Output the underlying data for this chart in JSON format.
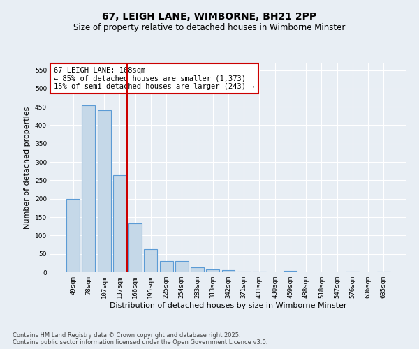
{
  "title": "67, LEIGH LANE, WIMBORNE, BH21 2PP",
  "subtitle": "Size of property relative to detached houses in Wimborne Minster",
  "xlabel": "Distribution of detached houses by size in Wimborne Minster",
  "ylabel": "Number of detached properties",
  "categories": [
    "49sqm",
    "78sqm",
    "107sqm",
    "137sqm",
    "166sqm",
    "195sqm",
    "225sqm",
    "254sqm",
    "283sqm",
    "313sqm",
    "342sqm",
    "371sqm",
    "401sqm",
    "430sqm",
    "459sqm",
    "488sqm",
    "518sqm",
    "547sqm",
    "576sqm",
    "606sqm",
    "635sqm"
  ],
  "values": [
    200,
    455,
    440,
    265,
    133,
    62,
    30,
    30,
    13,
    8,
    5,
    2,
    1,
    0,
    4,
    0,
    0,
    0,
    2,
    0,
    2
  ],
  "bar_color": "#c5d8e8",
  "bar_edge_color": "#5b9bd5",
  "vline_x_index": 4,
  "vline_color": "#cc0000",
  "annotation_box_text": "67 LEIGH LANE: 168sqm\n← 85% of detached houses are smaller (1,373)\n15% of semi-detached houses are larger (243) →",
  "annotation_box_color": "#ffffff",
  "annotation_box_edge_color": "#cc0000",
  "ylim": [
    0,
    570
  ],
  "yticks": [
    0,
    50,
    100,
    150,
    200,
    250,
    300,
    350,
    400,
    450,
    500,
    550
  ],
  "background_color": "#e8eef4",
  "grid_color": "#ffffff",
  "footer_text": "Contains HM Land Registry data © Crown copyright and database right 2025.\nContains public sector information licensed under the Open Government Licence v3.0.",
  "title_fontsize": 10,
  "subtitle_fontsize": 8.5,
  "tick_fontsize": 6.5,
  "label_fontsize": 8,
  "annotation_fontsize": 7.5,
  "footer_fontsize": 6
}
